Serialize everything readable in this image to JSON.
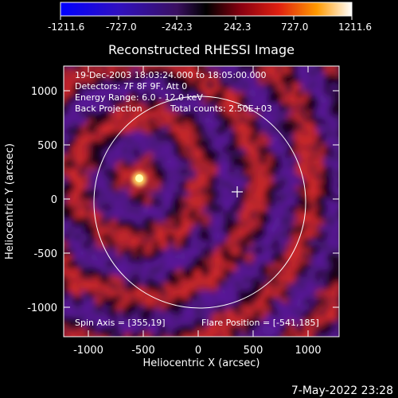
{
  "colorbar": {
    "tick_labels": [
      "-1211.6",
      "-727.0",
      "-242.3",
      "242.3",
      "727.0",
      "1211.6"
    ],
    "range": [
      -1211.6,
      1211.6
    ]
  },
  "title": "Reconstructed RHESSI Image",
  "info": {
    "line1": "19-Dec-2003 18:03:24.000 to 18:05:00.000",
    "line2": "Detectors: 7F 8F 9F, Att 0",
    "line3": "Energy Range: 6.0 - 12.0 keV",
    "line4a": "Back Projection",
    "line4b": "Total counts: 2.50E+03"
  },
  "bottom_left": "Spin Axis = [355,19]",
  "bottom_right": "Flare Position = [-541,185]",
  "axes": {
    "xlabel": "Heliocentric X (arcsec)",
    "ylabel": "Heliocentric Y (arcsec)",
    "xticks": [
      "-1000",
      "-500",
      "0",
      "500",
      "1000"
    ],
    "yticks": [
      "1000",
      "500",
      "0",
      "-500",
      "-1000"
    ],
    "xlim": [
      -1290,
      1290
    ],
    "ylim": [
      -1230,
      1230
    ]
  },
  "solar_limb_radius_arcsec": 960,
  "spin_axis": [
    355,
    19
  ],
  "flare_position": [
    -541,
    185
  ],
  "timestamp": "7-May-2022 23:28",
  "colors": {
    "background": "#000000",
    "foreground": "#ffffff",
    "negative": "#5a1a9a",
    "positive": "#d0282a",
    "peak": "#ffd060"
  }
}
